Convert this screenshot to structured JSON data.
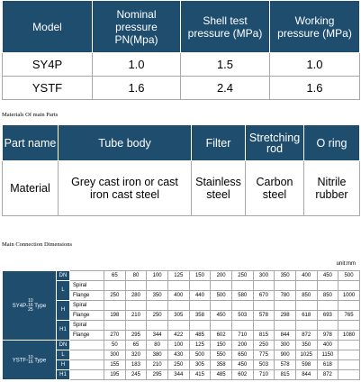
{
  "pressure_table": {
    "header": [
      "Model",
      "Nominal pressure PN(Mpa)",
      "Shell test pressure (MPa)",
      "Working pressure (MPa)"
    ],
    "rows": [
      [
        "SY4P",
        "1.0",
        "1.5",
        "1.0"
      ],
      [
        "YSTF",
        "1.6",
        "2.4",
        "1.6"
      ]
    ]
  },
  "materials_caption": "Materials Of main Parts",
  "materials_table": {
    "header": [
      "Part name",
      "Tube body",
      "Filter",
      "Stretching rod",
      "O ring"
    ],
    "rows": [
      [
        "Material",
        "Grey cast iron or cast iron cast steel",
        "Stainless steel",
        "Carbon steel",
        "Nitrile rubber"
      ]
    ]
  },
  "dimensions_caption": "Main Connection Dimensions",
  "unit": "unit:mm",
  "dimensions_table": {
    "groups": [
      {
        "model": "SY4P-",
        "sizes": [
          "10",
          "16",
          "25"
        ],
        "type": "Type",
        "rows": [
          {
            "dim": "DN",
            "parts": [
              {
                "values": [
                  65,
                  80,
                  100,
                  125,
                  150,
                  200,
                  250,
                  300,
                  350,
                  400,
                  450,
                  500
                ]
              }
            ]
          },
          {
            "dim": "L",
            "parts": [
              {
                "sub": "Spiral"
              },
              {
                "sub": "Flange",
                "values": [
                  250,
                  280,
                  350,
                  400,
                  440,
                  500,
                  580,
                  670,
                  780,
                  850,
                  850,
                  1000
                ]
              }
            ]
          },
          {
            "dim": "H",
            "parts": [
              {
                "sub": "Spiral"
              },
              {
                "sub": "Flange",
                "values": [
                  198,
                  210,
                  250,
                  305,
                  358,
                  450,
                  503,
                  578,
                  298,
                  618,
                  693,
                  765
                ]
              }
            ]
          },
          {
            "dim": "H1",
            "parts": [
              {
                "sub": "Spiral"
              },
              {
                "sub": "Flange",
                "values": [
                  270,
                  295,
                  344,
                  422,
                  485,
                  602,
                  710,
                  815,
                  844,
                  872,
                  978,
                  1080
                ]
              }
            ]
          }
        ]
      },
      {
        "model": "YSTF-",
        "sizes": [
          "10",
          "16"
        ],
        "type": "Type",
        "rows": [
          {
            "dim": "DN",
            "parts": [
              {
                "values": [
                  50,
                  65,
                  80,
                  100,
                  125,
                  150,
                  200,
                  250,
                  300,
                  350,
                  400
                ]
              }
            ]
          },
          {
            "dim": "L",
            "parts": [
              {
                "values": [
                  300,
                  320,
                  380,
                  430,
                  500,
                  550,
                  650,
                  775,
                  900,
                  1025,
                  1150
                ]
              }
            ]
          },
          {
            "dim": "H",
            "parts": [
              {
                "values": [
                  155,
                  183,
                  210,
                  250,
                  305,
                  358,
                  450,
                  503,
                  578,
                  598,
                  618
                ]
              }
            ]
          },
          {
            "dim": "H1",
            "parts": [
              {
                "values": [
                  195,
                  245,
                  295,
                  344,
                  415,
                  485,
                  602,
                  710,
                  815,
                  844,
                  872
                ]
              }
            ]
          }
        ]
      }
    ]
  }
}
